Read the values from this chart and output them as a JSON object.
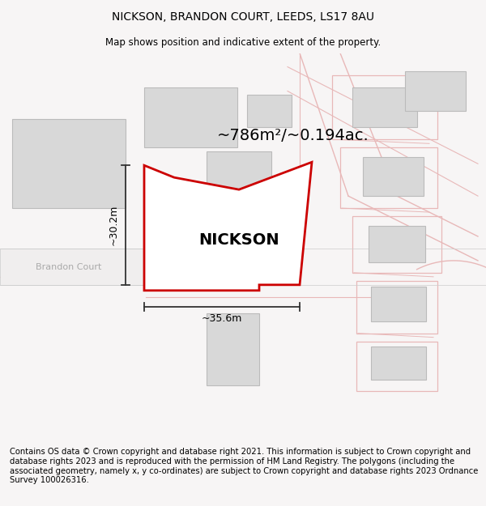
{
  "title_line1": "NICKSON, BRANDON COURT, LEEDS, LS17 8AU",
  "title_line2": "Map shows position and indicative extent of the property.",
  "footer_text": "Contains OS data © Crown copyright and database right 2021. This information is subject to Crown copyright and database rights 2023 and is reproduced with the permission of HM Land Registry. The polygons (including the associated geometry, namely x, y co-ordinates) are subject to Crown copyright and database rights 2023 Ordnance Survey 100026316.",
  "area_label": "~786m²/~0.194ac.",
  "property_label": "NICKSON",
  "dim_height": "~30.2m",
  "dim_width": "~35.6m",
  "street_label": "Brandon Court",
  "bg_color": "#f7f5f5",
  "map_bg": "#ffffff",
  "plot_color_edge": "#cc0000",
  "building_fill": "#d8d8d8",
  "building_edge": "#bbbbbb",
  "road_line_color": "#e8b8b8",
  "road_line_color2": "#cccccc",
  "dim_line_color": "#333333",
  "street_text_color": "#aaaaaa",
  "title_fontsize": 10,
  "subtitle_fontsize": 8.5,
  "footer_fontsize": 7.2,
  "property_fontsize": 14,
  "area_fontsize": 14
}
